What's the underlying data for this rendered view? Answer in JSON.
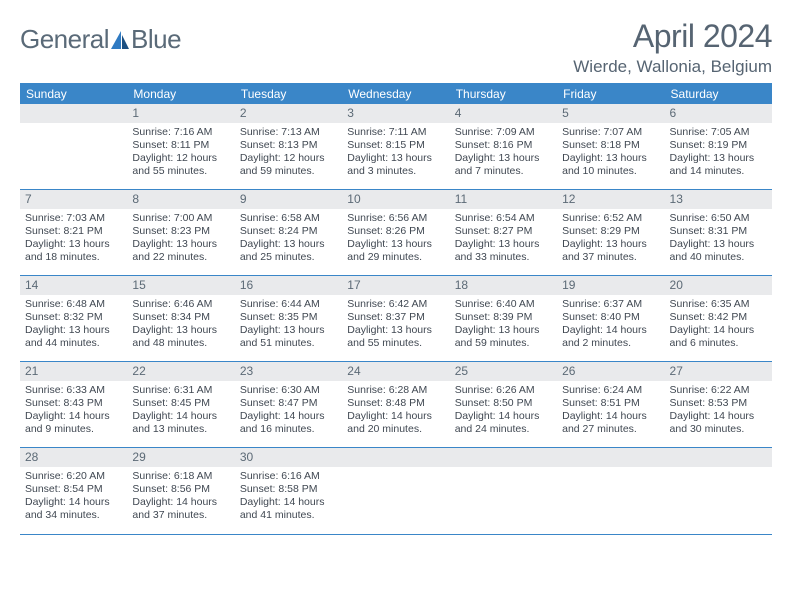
{
  "brand": {
    "general": "General",
    "blue": "Blue"
  },
  "title": "April 2024",
  "location": "Wierde, Wallonia, Belgium",
  "colors": {
    "header_blue": "#3a86c8",
    "daynum_bg": "#e9eaec",
    "text": "#404852",
    "title_text": "#566472"
  },
  "dow": [
    "Sunday",
    "Monday",
    "Tuesday",
    "Wednesday",
    "Thursday",
    "Friday",
    "Saturday"
  ],
  "weeks": [
    [
      {
        "n": "",
        "sr": "",
        "ss": "",
        "dl": ""
      },
      {
        "n": "1",
        "sr": "Sunrise: 7:16 AM",
        "ss": "Sunset: 8:11 PM",
        "dl": "Daylight: 12 hours and 55 minutes."
      },
      {
        "n": "2",
        "sr": "Sunrise: 7:13 AM",
        "ss": "Sunset: 8:13 PM",
        "dl": "Daylight: 12 hours and 59 minutes."
      },
      {
        "n": "3",
        "sr": "Sunrise: 7:11 AM",
        "ss": "Sunset: 8:15 PM",
        "dl": "Daylight: 13 hours and 3 minutes."
      },
      {
        "n": "4",
        "sr": "Sunrise: 7:09 AM",
        "ss": "Sunset: 8:16 PM",
        "dl": "Daylight: 13 hours and 7 minutes."
      },
      {
        "n": "5",
        "sr": "Sunrise: 7:07 AM",
        "ss": "Sunset: 8:18 PM",
        "dl": "Daylight: 13 hours and 10 minutes."
      },
      {
        "n": "6",
        "sr": "Sunrise: 7:05 AM",
        "ss": "Sunset: 8:19 PM",
        "dl": "Daylight: 13 hours and 14 minutes."
      }
    ],
    [
      {
        "n": "7",
        "sr": "Sunrise: 7:03 AM",
        "ss": "Sunset: 8:21 PM",
        "dl": "Daylight: 13 hours and 18 minutes."
      },
      {
        "n": "8",
        "sr": "Sunrise: 7:00 AM",
        "ss": "Sunset: 8:23 PM",
        "dl": "Daylight: 13 hours and 22 minutes."
      },
      {
        "n": "9",
        "sr": "Sunrise: 6:58 AM",
        "ss": "Sunset: 8:24 PM",
        "dl": "Daylight: 13 hours and 25 minutes."
      },
      {
        "n": "10",
        "sr": "Sunrise: 6:56 AM",
        "ss": "Sunset: 8:26 PM",
        "dl": "Daylight: 13 hours and 29 minutes."
      },
      {
        "n": "11",
        "sr": "Sunrise: 6:54 AM",
        "ss": "Sunset: 8:27 PM",
        "dl": "Daylight: 13 hours and 33 minutes."
      },
      {
        "n": "12",
        "sr": "Sunrise: 6:52 AM",
        "ss": "Sunset: 8:29 PM",
        "dl": "Daylight: 13 hours and 37 minutes."
      },
      {
        "n": "13",
        "sr": "Sunrise: 6:50 AM",
        "ss": "Sunset: 8:31 PM",
        "dl": "Daylight: 13 hours and 40 minutes."
      }
    ],
    [
      {
        "n": "14",
        "sr": "Sunrise: 6:48 AM",
        "ss": "Sunset: 8:32 PM",
        "dl": "Daylight: 13 hours and 44 minutes."
      },
      {
        "n": "15",
        "sr": "Sunrise: 6:46 AM",
        "ss": "Sunset: 8:34 PM",
        "dl": "Daylight: 13 hours and 48 minutes."
      },
      {
        "n": "16",
        "sr": "Sunrise: 6:44 AM",
        "ss": "Sunset: 8:35 PM",
        "dl": "Daylight: 13 hours and 51 minutes."
      },
      {
        "n": "17",
        "sr": "Sunrise: 6:42 AM",
        "ss": "Sunset: 8:37 PM",
        "dl": "Daylight: 13 hours and 55 minutes."
      },
      {
        "n": "18",
        "sr": "Sunrise: 6:40 AM",
        "ss": "Sunset: 8:39 PM",
        "dl": "Daylight: 13 hours and 59 minutes."
      },
      {
        "n": "19",
        "sr": "Sunrise: 6:37 AM",
        "ss": "Sunset: 8:40 PM",
        "dl": "Daylight: 14 hours and 2 minutes."
      },
      {
        "n": "20",
        "sr": "Sunrise: 6:35 AM",
        "ss": "Sunset: 8:42 PM",
        "dl": "Daylight: 14 hours and 6 minutes."
      }
    ],
    [
      {
        "n": "21",
        "sr": "Sunrise: 6:33 AM",
        "ss": "Sunset: 8:43 PM",
        "dl": "Daylight: 14 hours and 9 minutes."
      },
      {
        "n": "22",
        "sr": "Sunrise: 6:31 AM",
        "ss": "Sunset: 8:45 PM",
        "dl": "Daylight: 14 hours and 13 minutes."
      },
      {
        "n": "23",
        "sr": "Sunrise: 6:30 AM",
        "ss": "Sunset: 8:47 PM",
        "dl": "Daylight: 14 hours and 16 minutes."
      },
      {
        "n": "24",
        "sr": "Sunrise: 6:28 AM",
        "ss": "Sunset: 8:48 PM",
        "dl": "Daylight: 14 hours and 20 minutes."
      },
      {
        "n": "25",
        "sr": "Sunrise: 6:26 AM",
        "ss": "Sunset: 8:50 PM",
        "dl": "Daylight: 14 hours and 24 minutes."
      },
      {
        "n": "26",
        "sr": "Sunrise: 6:24 AM",
        "ss": "Sunset: 8:51 PM",
        "dl": "Daylight: 14 hours and 27 minutes."
      },
      {
        "n": "27",
        "sr": "Sunrise: 6:22 AM",
        "ss": "Sunset: 8:53 PM",
        "dl": "Daylight: 14 hours and 30 minutes."
      }
    ],
    [
      {
        "n": "28",
        "sr": "Sunrise: 6:20 AM",
        "ss": "Sunset: 8:54 PM",
        "dl": "Daylight: 14 hours and 34 minutes."
      },
      {
        "n": "29",
        "sr": "Sunrise: 6:18 AM",
        "ss": "Sunset: 8:56 PM",
        "dl": "Daylight: 14 hours and 37 minutes."
      },
      {
        "n": "30",
        "sr": "Sunrise: 6:16 AM",
        "ss": "Sunset: 8:58 PM",
        "dl": "Daylight: 14 hours and 41 minutes."
      },
      {
        "n": "",
        "sr": "",
        "ss": "",
        "dl": ""
      },
      {
        "n": "",
        "sr": "",
        "ss": "",
        "dl": ""
      },
      {
        "n": "",
        "sr": "",
        "ss": "",
        "dl": ""
      },
      {
        "n": "",
        "sr": "",
        "ss": "",
        "dl": ""
      }
    ]
  ]
}
